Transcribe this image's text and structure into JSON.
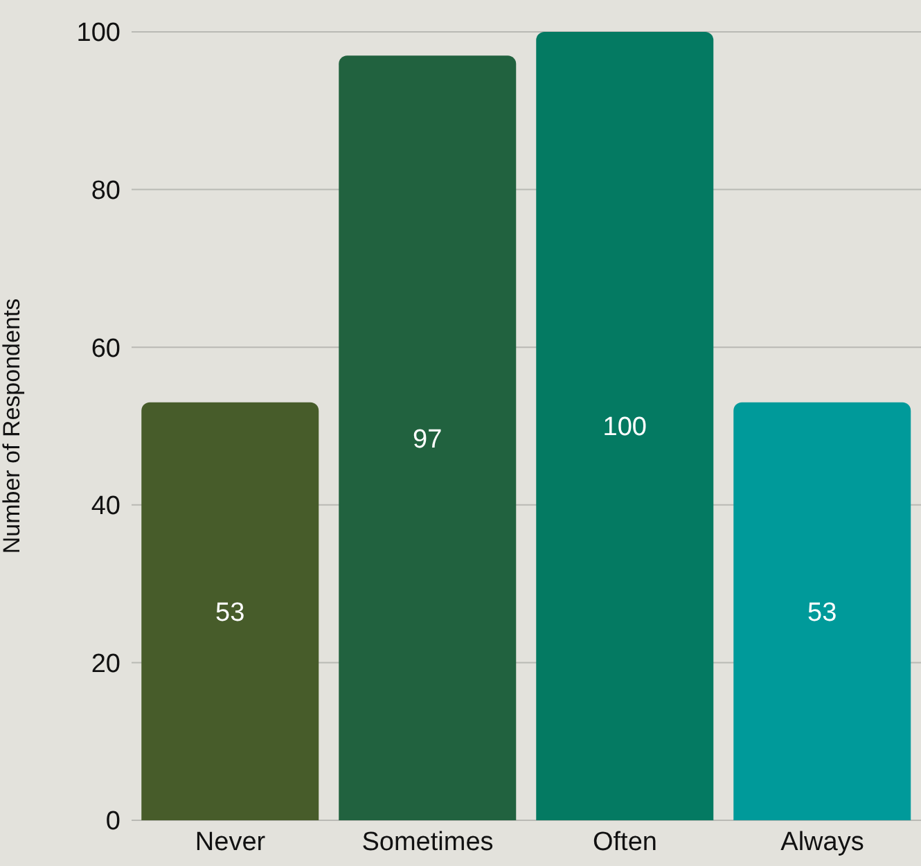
{
  "chart_data": {
    "type": "bar",
    "ylabel": "Number of Respondents",
    "categories": [
      "Never",
      "Sometimes",
      "Often",
      "Always"
    ],
    "values": [
      53,
      97,
      100,
      53
    ],
    "colors": [
      "#475c2a",
      "#21623f",
      "#047a62",
      "#009a9a"
    ],
    "ylim": [
      0,
      100
    ],
    "yticks": [
      0,
      20,
      40,
      60,
      80,
      100
    ],
    "grid": "y",
    "data_labels": true
  }
}
